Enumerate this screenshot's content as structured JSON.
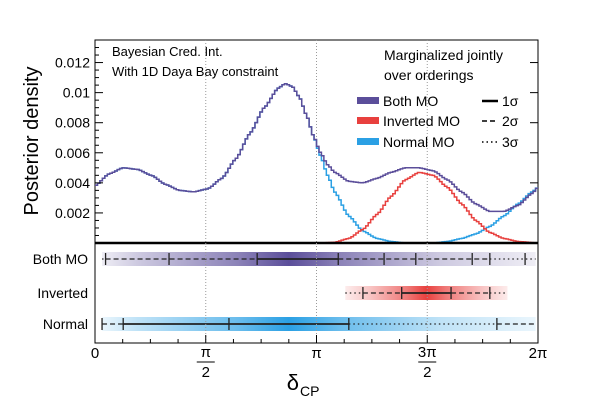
{
  "chart_data": [
    {
      "type": "line",
      "panel": "posterior",
      "ylabel": "Posterior density",
      "annotations": {
        "top_left": [
          "Bayesian Cred. Int.",
          "With 1D Daya Bay constraint"
        ],
        "top_right": [
          "Marginalized jointly",
          "over orderings"
        ]
      },
      "ylim": [
        0,
        0.0135
      ],
      "xlim": [
        0,
        6.2832
      ],
      "y_ticks": [
        "0.002",
        "0.004",
        "0.006",
        "0.008",
        "0.01",
        "0.012"
      ],
      "y_tick_values": [
        0.002,
        0.004,
        0.006,
        0.008,
        0.01,
        0.012
      ],
      "legend": {
        "placement": "right",
        "entries": [
          {
            "label": "Both MO",
            "color": "#5b4e9a"
          },
          {
            "label": "Inverted MO",
            "color": "#e8403e"
          },
          {
            "label": "Normal MO",
            "color": "#2ba0e4"
          }
        ],
        "sigma_entries": [
          {
            "label": "1σ",
            "style": "solid"
          },
          {
            "label": "2σ",
            "style": "dashed"
          },
          {
            "label": "3σ",
            "style": "dotted"
          }
        ]
      },
      "grid": "vertical dotted at π/2, π, 3π/2",
      "series": [
        {
          "name": "Both MO",
          "color": "#5b4e9a",
          "x": [
            0,
            0.2,
            0.4,
            0.6,
            0.8,
            1.0,
            1.2,
            1.4,
            1.6,
            1.8,
            2.0,
            2.2,
            2.4,
            2.6,
            2.7,
            2.8,
            2.9,
            3.0,
            3.1,
            3.2,
            3.3,
            3.4,
            3.6,
            3.8,
            4.0,
            4.2,
            4.4,
            4.6,
            4.8,
            5.0,
            5.2,
            5.4,
            5.6,
            5.8,
            6.0,
            6.2,
            6.2832
          ],
          "y": [
            0.0038,
            0.0046,
            0.005,
            0.0049,
            0.0045,
            0.0039,
            0.0035,
            0.0034,
            0.0036,
            0.0043,
            0.0056,
            0.0073,
            0.009,
            0.0103,
            0.0106,
            0.0104,
            0.0097,
            0.0085,
            0.0071,
            0.006,
            0.0052,
            0.0047,
            0.0041,
            0.004,
            0.0043,
            0.0047,
            0.005,
            0.005,
            0.0048,
            0.0042,
            0.0034,
            0.0026,
            0.0021,
            0.0021,
            0.0025,
            0.0033,
            0.0037
          ]
        },
        {
          "name": "Inverted MO",
          "color": "#e8403e",
          "x": [
            0,
            0.5,
            1.0,
            1.5,
            2.0,
            2.5,
            3.0,
            3.2,
            3.4,
            3.6,
            3.8,
            4.0,
            4.2,
            4.4,
            4.6,
            4.8,
            5.0,
            5.2,
            5.4,
            5.6,
            5.8,
            6.0,
            6.2832
          ],
          "y": [
            0,
            0,
            0,
            0,
            0,
            0,
            0,
            0,
            5e-05,
            0.0003,
            0.0009,
            0.0019,
            0.0031,
            0.0042,
            0.0047,
            0.0045,
            0.0037,
            0.0026,
            0.0015,
            0.0007,
            0.0003,
            0.0001,
            0
          ]
        },
        {
          "name": "Normal MO",
          "color": "#2ba0e4",
          "x": [
            0,
            0.2,
            0.4,
            0.6,
            0.8,
            1.0,
            1.2,
            1.4,
            1.6,
            1.8,
            2.0,
            2.2,
            2.4,
            2.6,
            2.7,
            2.8,
            2.9,
            3.0,
            3.1,
            3.2,
            3.3,
            3.4,
            3.6,
            3.8,
            4.0,
            4.2,
            4.4,
            4.6,
            4.8,
            5.0,
            5.2,
            5.4,
            5.6,
            5.8,
            6.0,
            6.2,
            6.2832
          ],
          "y": [
            0.0038,
            0.0046,
            0.005,
            0.0049,
            0.0045,
            0.0039,
            0.0035,
            0.0034,
            0.0036,
            0.0043,
            0.0056,
            0.0073,
            0.009,
            0.0103,
            0.0106,
            0.0104,
            0.0097,
            0.0085,
            0.0071,
            0.0058,
            0.0045,
            0.0034,
            0.0018,
            0.0008,
            0.0003,
            0.0001,
            0,
            0,
            0,
            0.0001,
            0.0003,
            0.0006,
            0.0011,
            0.0018,
            0.0026,
            0.0034,
            0.0037
          ]
        }
      ]
    },
    {
      "type": "interval",
      "panel": "credible-intervals",
      "xlabel_main": "δ",
      "xlabel_sub": "CP",
      "x_ticks": [
        {
          "value": 0,
          "label": "0"
        },
        {
          "value": 1.5708,
          "num": "π",
          "den": "2"
        },
        {
          "value": 3.1416,
          "label": "π"
        },
        {
          "value": 4.7124,
          "num": "3π",
          "den": "2"
        },
        {
          "value": 6.2832,
          "label": "2π"
        }
      ],
      "rows": [
        {
          "label": "Both MO",
          "color": "#5b4e9a",
          "peak": 2.75,
          "segments": [
            {
              "from": 0.1,
              "to": 0.15,
              "style": "dotted"
            },
            {
              "from": 0.15,
              "to": 2.3,
              "style": "dashed"
            },
            {
              "from": 2.3,
              "to": 3.45,
              "style": "solid"
            },
            {
              "from": 3.45,
              "to": 5.6,
              "style": "dashed"
            },
            {
              "from": 5.6,
              "to": 6.25,
              "style": "dotted"
            }
          ],
          "markers": [
            0.15,
            1.05,
            2.3,
            3.45,
            4.1,
            4.55,
            5.35,
            5.6,
            6.1
          ]
        },
        {
          "label": "Inverted",
          "color": "#e8403e",
          "peak": 4.7,
          "segments": [
            {
              "from": 3.55,
              "to": 3.8,
              "style": "dotted"
            },
            {
              "from": 3.8,
              "to": 4.35,
              "style": "dashed"
            },
            {
              "from": 4.35,
              "to": 5.05,
              "style": "solid"
            },
            {
              "from": 5.05,
              "to": 5.6,
              "style": "dashed"
            },
            {
              "from": 5.6,
              "to": 5.85,
              "style": "dotted"
            }
          ],
          "markers": [
            3.8,
            4.35,
            5.05,
            5.6
          ]
        },
        {
          "label": "Normal",
          "color": "#2ba0e4",
          "peak": 2.75,
          "segments": [
            {
              "from": 0.1,
              "to": 0.4,
              "style": "dashed"
            },
            {
              "from": 0.4,
              "to": 3.6,
              "style": "solid"
            },
            {
              "from": 3.6,
              "to": 5.7,
              "style": "dotted"
            },
            {
              "from": 5.7,
              "to": 6.25,
              "style": "dashed"
            }
          ],
          "markers": [
            0.1,
            0.4,
            1.9,
            3.6,
            5.7
          ]
        }
      ]
    }
  ]
}
